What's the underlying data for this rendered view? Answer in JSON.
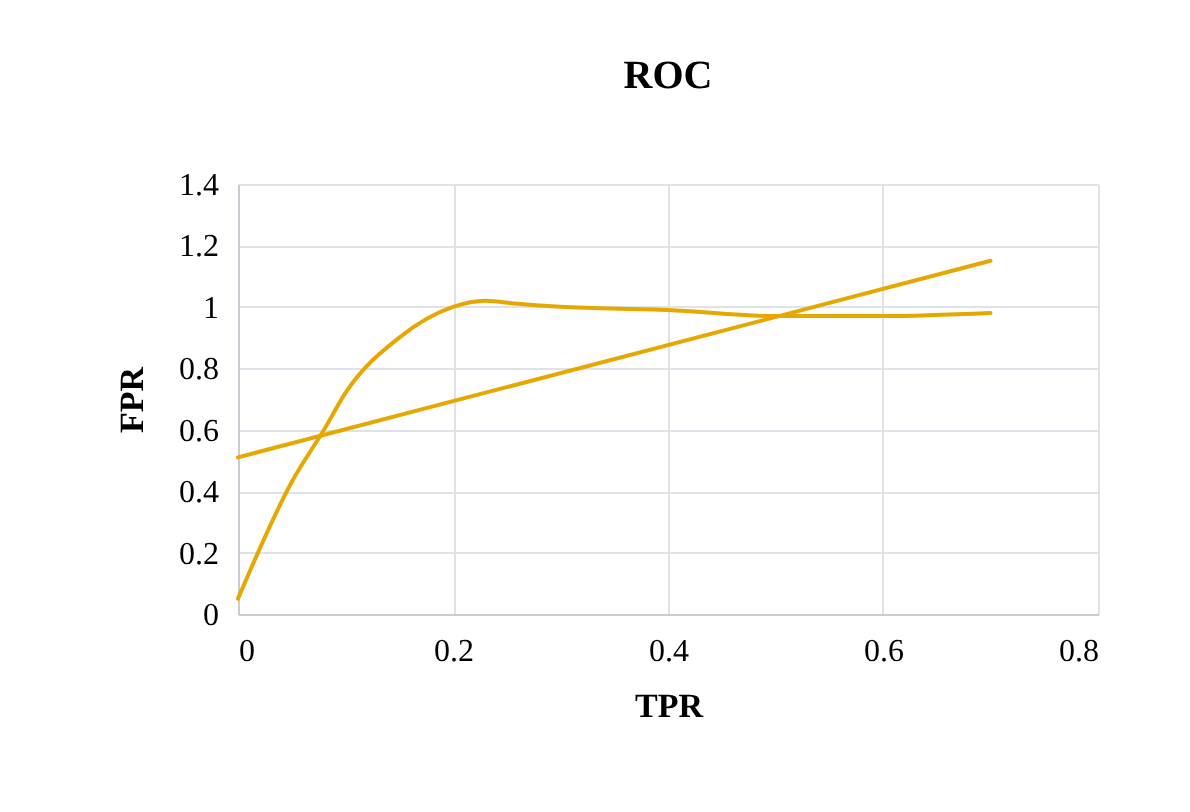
{
  "chart_data": {
    "type": "line",
    "title": "ROC",
    "xlabel": "TPR",
    "ylabel": "FPR",
    "xlim": [
      0,
      0.8
    ],
    "xticks": [
      0,
      0.2,
      0.4,
      0.6,
      0.8
    ],
    "ylim": [
      0,
      1.4
    ],
    "yticks": [
      0,
      0.2,
      0.4,
      0.6,
      0.8,
      1,
      1.2,
      1.4
    ],
    "grid": true,
    "marker": "none",
    "line_style": "solid",
    "series": [
      {
        "color": "#e6a800",
        "x": [
          0,
          0.05,
          0.08,
          0.1,
          0.15,
          0.2,
          0.23,
          0.26,
          0.3,
          0.4,
          0.5,
          0.6,
          0.7
        ],
        "values": [
          0.05,
          0.43,
          0.6,
          0.72,
          0.9,
          1.0,
          1.02,
          1.01,
          1.0,
          0.99,
          0.97,
          0.97,
          0.98
        ]
      },
      {
        "color": "#e6a800",
        "x": [
          0,
          0.7
        ],
        "values": [
          0.51,
          1.15
        ]
      }
    ]
  }
}
